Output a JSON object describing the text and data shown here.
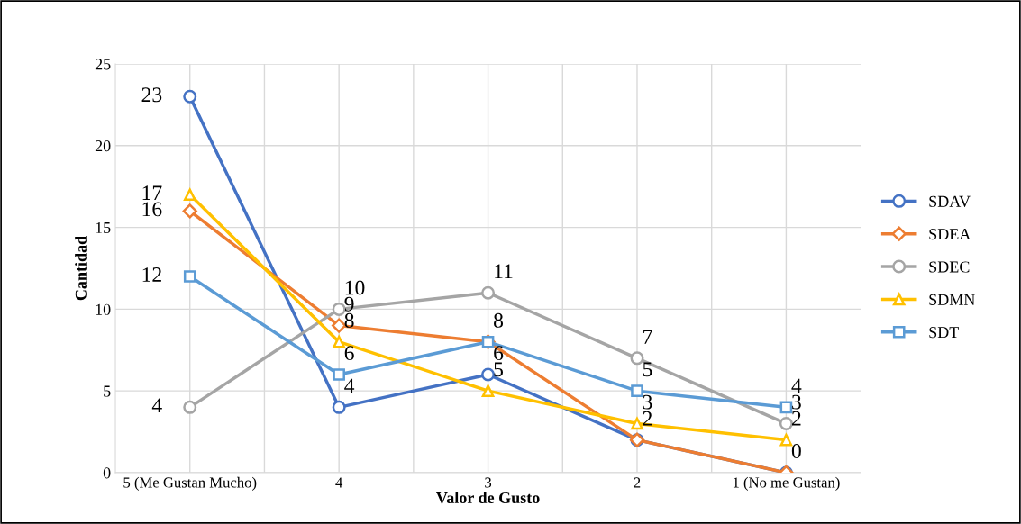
{
  "chart_data": {
    "type": "line",
    "xlabel": "Valor de Gusto",
    "ylabel": "Cantidad",
    "categories": [
      "5 (Me Gustan Mucho)",
      "4",
      "3",
      "2",
      "1 (No me Gustan)"
    ],
    "ylim": [
      0,
      25
    ],
    "yticks": [
      0,
      5,
      10,
      15,
      20,
      25
    ],
    "grid": true,
    "legend": "right",
    "series": [
      {
        "name": "SDAV",
        "color": "#4472c4",
        "values": [
          23,
          4,
          6,
          2,
          0
        ],
        "marker": "circle",
        "value_labels": [
          "23",
          "4",
          "6",
          "2",
          null
        ]
      },
      {
        "name": "SDEA",
        "color": "#ed7d31",
        "values": [
          16,
          9,
          8,
          2,
          0
        ],
        "marker": "diamond",
        "value_labels": [
          "16",
          "9",
          null,
          null,
          "0"
        ]
      },
      {
        "name": "SDEC",
        "color": "#a5a5a5",
        "values": [
          4,
          10,
          11,
          7,
          3
        ],
        "marker": "circle",
        "value_labels": [
          "4",
          "10",
          "11",
          "7",
          "3"
        ]
      },
      {
        "name": "SDMN",
        "color": "#ffc000",
        "values": [
          17,
          8,
          5,
          3,
          2
        ],
        "marker": "triangle",
        "value_labels": [
          "17",
          "8",
          "5",
          "3",
          "2"
        ]
      },
      {
        "name": "SDT",
        "color": "#5b9bd5",
        "values": [
          12,
          6,
          8,
          5,
          4
        ],
        "marker": "square",
        "value_labels": [
          "12",
          "6",
          "8",
          "5",
          "4"
        ]
      }
    ]
  }
}
